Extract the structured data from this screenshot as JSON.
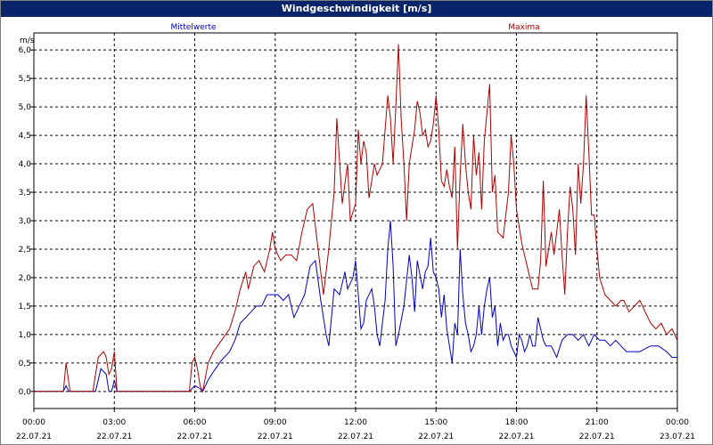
{
  "window": {
    "title": "Windgeschwindigkeit [m/s]"
  },
  "chart_data": {
    "type": "line",
    "title": "Windgeschwindigkeit [m/s]",
    "ylabel": "m/s",
    "ylim": [
      -0.3,
      6.3
    ],
    "xlim": [
      0,
      24
    ],
    "grid": true,
    "legend": "top",
    "y_ticks": [
      "0,0",
      "0,5",
      "1,0",
      "1,5",
      "2,0",
      "2,5",
      "3,0",
      "3,5",
      "4,0",
      "4,5",
      "5,0",
      "5,5",
      "6,0"
    ],
    "x_ticks": [
      {
        "time": "00:00",
        "date": "22.07.21"
      },
      {
        "time": "03:00",
        "date": "22.07.21"
      },
      {
        "time": "06:00",
        "date": "22.07.21"
      },
      {
        "time": "09:00",
        "date": "22.07.21"
      },
      {
        "time": "12:00",
        "date": "22.07.21"
      },
      {
        "time": "15:00",
        "date": "22.07.21"
      },
      {
        "time": "18:00",
        "date": "22.07.21"
      },
      {
        "time": "21:00",
        "date": "22.07.21"
      },
      {
        "time": "00:00",
        "date": "23.07.21"
      }
    ],
    "series": [
      {
        "name": "Mittelwerte",
        "color": "#0000c0",
        "points": [
          [
            0,
            0
          ],
          [
            1.1,
            0
          ],
          [
            1.2,
            0.1
          ],
          [
            1.3,
            0
          ],
          [
            2.3,
            0
          ],
          [
            2.5,
            0.4
          ],
          [
            2.7,
            0.3
          ],
          [
            2.8,
            0
          ],
          [
            2.9,
            0
          ],
          [
            3.0,
            0.2
          ],
          [
            3.1,
            0
          ],
          [
            5.8,
            0
          ],
          [
            6.0,
            0.1
          ],
          [
            6.2,
            0.05
          ],
          [
            6.3,
            0
          ],
          [
            6.5,
            0.2
          ],
          [
            6.7,
            0.35
          ],
          [
            7.0,
            0.55
          ],
          [
            7.3,
            0.7
          ],
          [
            7.5,
            0.9
          ],
          [
            7.7,
            1.2
          ],
          [
            7.9,
            1.3
          ],
          [
            8.1,
            1.4
          ],
          [
            8.3,
            1.5
          ],
          [
            8.5,
            1.5
          ],
          [
            8.7,
            1.7
          ],
          [
            8.9,
            1.7
          ],
          [
            9.1,
            1.7
          ],
          [
            9.3,
            1.6
          ],
          [
            9.5,
            1.7
          ],
          [
            9.7,
            1.3
          ],
          [
            9.9,
            1.5
          ],
          [
            10.1,
            1.7
          ],
          [
            10.3,
            2.2
          ],
          [
            10.5,
            2.3
          ],
          [
            10.7,
            1.6
          ],
          [
            10.9,
            1.0
          ],
          [
            11.0,
            0.8
          ],
          [
            11.2,
            1.8
          ],
          [
            11.4,
            1.7
          ],
          [
            11.6,
            2.1
          ],
          [
            11.7,
            1.8
          ],
          [
            11.9,
            2.0
          ],
          [
            12.0,
            2.3
          ],
          [
            12.2,
            1.1
          ],
          [
            12.3,
            1.2
          ],
          [
            12.4,
            1.6
          ],
          [
            12.6,
            1.8
          ],
          [
            12.7,
            1.5
          ],
          [
            12.8,
            1.0
          ],
          [
            12.9,
            0.8
          ],
          [
            13.0,
            1.2
          ],
          [
            13.1,
            1.6
          ],
          [
            13.2,
            2.5
          ],
          [
            13.3,
            3.0
          ],
          [
            13.4,
            2.2
          ],
          [
            13.5,
            0.8
          ],
          [
            13.6,
            1.0
          ],
          [
            13.8,
            1.5
          ],
          [
            14.0,
            2.4
          ],
          [
            14.1,
            2.0
          ],
          [
            14.2,
            1.4
          ],
          [
            14.3,
            2.3
          ],
          [
            14.5,
            1.8
          ],
          [
            14.6,
            2.1
          ],
          [
            14.7,
            2.2
          ],
          [
            14.8,
            2.7
          ],
          [
            14.9,
            2.1
          ],
          [
            15.0,
            2.0
          ],
          [
            15.1,
            1.8
          ],
          [
            15.2,
            1.3
          ],
          [
            15.3,
            1.7
          ],
          [
            15.4,
            1.1
          ],
          [
            15.5,
            0.8
          ],
          [
            15.6,
            0.5
          ],
          [
            15.7,
            1.2
          ],
          [
            15.8,
            1.0
          ],
          [
            15.9,
            2.5
          ],
          [
            16.0,
            1.7
          ],
          [
            16.1,
            1.2
          ],
          [
            16.2,
            1.0
          ],
          [
            16.3,
            0.7
          ],
          [
            16.4,
            0.8
          ],
          [
            16.5,
            1.0
          ],
          [
            16.6,
            1.5
          ],
          [
            16.7,
            1.0
          ],
          [
            16.8,
            1.5
          ],
          [
            16.9,
            1.8
          ],
          [
            17.0,
            2.0
          ],
          [
            17.1,
            1.3
          ],
          [
            17.2,
            1.5
          ],
          [
            17.3,
            0.8
          ],
          [
            17.4,
            1.2
          ],
          [
            17.5,
            0.9
          ],
          [
            17.6,
            1.0
          ],
          [
            17.7,
            1.0
          ],
          [
            17.8,
            0.8
          ],
          [
            18.0,
            0.6
          ],
          [
            18.1,
            1.0
          ],
          [
            18.2,
            0.9
          ],
          [
            18.3,
            0.7
          ],
          [
            18.4,
            0.8
          ],
          [
            18.5,
            1.0
          ],
          [
            18.6,
            0.8
          ],
          [
            18.7,
            0.8
          ],
          [
            18.8,
            1.3
          ],
          [
            18.9,
            1.1
          ],
          [
            19.0,
            0.9
          ],
          [
            19.1,
            0.8
          ],
          [
            19.3,
            0.8
          ],
          [
            19.5,
            0.6
          ],
          [
            19.7,
            0.9
          ],
          [
            19.9,
            1.0
          ],
          [
            20.1,
            1.0
          ],
          [
            20.3,
            0.9
          ],
          [
            20.5,
            1.0
          ],
          [
            20.7,
            0.8
          ],
          [
            20.9,
            1.0
          ],
          [
            21.1,
            0.9
          ],
          [
            21.3,
            0.9
          ],
          [
            21.5,
            0.8
          ],
          [
            21.7,
            0.9
          ],
          [
            21.9,
            0.8
          ],
          [
            22.1,
            0.7
          ],
          [
            22.3,
            0.7
          ],
          [
            22.6,
            0.7
          ],
          [
            23.0,
            0.8
          ],
          [
            23.3,
            0.8
          ],
          [
            23.6,
            0.7
          ],
          [
            23.8,
            0.6
          ],
          [
            24.0,
            0.6
          ]
        ]
      },
      {
        "name": "Maxima",
        "color": "#b00000",
        "points": [
          [
            0,
            0
          ],
          [
            1.1,
            0
          ],
          [
            1.2,
            0.5
          ],
          [
            1.35,
            0
          ],
          [
            2.2,
            0
          ],
          [
            2.4,
            0.6
          ],
          [
            2.6,
            0.7
          ],
          [
            2.7,
            0.6
          ],
          [
            2.8,
            0.3
          ],
          [
            2.9,
            0.4
          ],
          [
            3.0,
            0.7
          ],
          [
            3.1,
            0
          ],
          [
            5.8,
            0
          ],
          [
            5.9,
            0.5
          ],
          [
            6.0,
            0.6
          ],
          [
            6.1,
            0.4
          ],
          [
            6.2,
            0.1
          ],
          [
            6.3,
            0
          ],
          [
            6.5,
            0.5
          ],
          [
            6.7,
            0.7
          ],
          [
            7.0,
            0.9
          ],
          [
            7.3,
            1.1
          ],
          [
            7.5,
            1.4
          ],
          [
            7.7,
            1.8
          ],
          [
            7.9,
            2.1
          ],
          [
            8.0,
            1.8
          ],
          [
            8.2,
            2.2
          ],
          [
            8.4,
            2.3
          ],
          [
            8.6,
            2.1
          ],
          [
            8.8,
            2.5
          ],
          [
            8.9,
            2.8
          ],
          [
            9.0,
            2.5
          ],
          [
            9.2,
            2.3
          ],
          [
            9.4,
            2.4
          ],
          [
            9.6,
            2.4
          ],
          [
            9.8,
            2.3
          ],
          [
            10.0,
            2.8
          ],
          [
            10.2,
            3.2
          ],
          [
            10.4,
            3.3
          ],
          [
            10.6,
            2.5
          ],
          [
            10.8,
            1.7
          ],
          [
            11.0,
            2.5
          ],
          [
            11.2,
            3.5
          ],
          [
            11.3,
            4.8
          ],
          [
            11.5,
            3.3
          ],
          [
            11.7,
            4.0
          ],
          [
            11.8,
            3.0
          ],
          [
            12.0,
            3.3
          ],
          [
            12.1,
            4.6
          ],
          [
            12.2,
            4.0
          ],
          [
            12.3,
            4.4
          ],
          [
            12.4,
            4.2
          ],
          [
            12.5,
            3.4
          ],
          [
            12.7,
            4.0
          ],
          [
            12.8,
            3.8
          ],
          [
            13.0,
            4.0
          ],
          [
            13.2,
            5.2
          ],
          [
            13.3,
            4.8
          ],
          [
            13.4,
            4.0
          ],
          [
            13.5,
            5.0
          ],
          [
            13.6,
            6.1
          ],
          [
            13.7,
            4.8
          ],
          [
            13.8,
            4.0
          ],
          [
            13.9,
            3.0
          ],
          [
            14.0,
            4.0
          ],
          [
            14.1,
            4.3
          ],
          [
            14.2,
            4.6
          ],
          [
            14.3,
            5.1
          ],
          [
            14.4,
            4.9
          ],
          [
            14.5,
            4.5
          ],
          [
            14.6,
            4.6
          ],
          [
            14.7,
            4.3
          ],
          [
            14.8,
            4.4
          ],
          [
            14.9,
            4.7
          ],
          [
            15.0,
            5.2
          ],
          [
            15.1,
            4.6
          ],
          [
            15.2,
            3.7
          ],
          [
            15.3,
            3.6
          ],
          [
            15.4,
            3.9
          ],
          [
            15.5,
            3.6
          ],
          [
            15.6,
            3.4
          ],
          [
            15.7,
            4.3
          ],
          [
            15.8,
            2.5
          ],
          [
            15.9,
            3.8
          ],
          [
            16.0,
            4.7
          ],
          [
            16.1,
            4.0
          ],
          [
            16.2,
            3.5
          ],
          [
            16.3,
            3.2
          ],
          [
            16.4,
            4.5
          ],
          [
            16.5,
            3.8
          ],
          [
            16.6,
            4.2
          ],
          [
            16.7,
            3.2
          ],
          [
            16.8,
            4.4
          ],
          [
            17.0,
            5.4
          ],
          [
            17.1,
            3.5
          ],
          [
            17.2,
            3.8
          ],
          [
            17.3,
            2.8
          ],
          [
            17.5,
            2.7
          ],
          [
            17.7,
            3.5
          ],
          [
            17.8,
            4.5
          ],
          [
            17.9,
            4.0
          ],
          [
            18.0,
            3.2
          ],
          [
            18.2,
            2.6
          ],
          [
            18.4,
            2.2
          ],
          [
            18.6,
            1.8
          ],
          [
            18.8,
            1.8
          ],
          [
            18.9,
            2.3
          ],
          [
            19.0,
            3.7
          ],
          [
            19.1,
            2.2
          ],
          [
            19.3,
            2.8
          ],
          [
            19.4,
            2.4
          ],
          [
            19.6,
            3.2
          ],
          [
            19.7,
            2.4
          ],
          [
            19.8,
            1.7
          ],
          [
            19.9,
            2.8
          ],
          [
            20.0,
            3.6
          ],
          [
            20.1,
            3.2
          ],
          [
            20.2,
            2.4
          ],
          [
            20.3,
            4.0
          ],
          [
            20.4,
            3.3
          ],
          [
            20.5,
            4.0
          ],
          [
            20.6,
            5.2
          ],
          [
            20.7,
            4.2
          ],
          [
            20.8,
            3.1
          ],
          [
            20.9,
            3.1
          ],
          [
            21.0,
            2.5
          ],
          [
            21.1,
            2.0
          ],
          [
            21.3,
            1.7
          ],
          [
            21.5,
            1.6
          ],
          [
            21.7,
            1.5
          ],
          [
            21.9,
            1.6
          ],
          [
            22.0,
            1.6
          ],
          [
            22.2,
            1.4
          ],
          [
            22.4,
            1.5
          ],
          [
            22.6,
            1.6
          ],
          [
            22.8,
            1.4
          ],
          [
            23.0,
            1.2
          ],
          [
            23.2,
            1.1
          ],
          [
            23.4,
            1.2
          ],
          [
            23.6,
            1.0
          ],
          [
            23.8,
            1.1
          ],
          [
            24.0,
            0.9
          ]
        ]
      }
    ]
  }
}
